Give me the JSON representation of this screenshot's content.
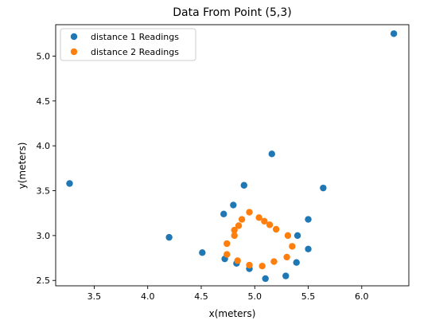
{
  "chart_data": {
    "type": "scatter",
    "title": "Data From Point (5,3)",
    "xlabel": "x(meters)",
    "ylabel": "y(meters)",
    "xlim": [
      3.14,
      6.44
    ],
    "ylim": [
      2.44,
      5.35
    ],
    "xticks": [
      {
        "value": 3.5,
        "label": "3.5"
      },
      {
        "value": 4.0,
        "label": "4.0"
      },
      {
        "value": 4.5,
        "label": "4.5"
      },
      {
        "value": 5.0,
        "label": "5.0"
      },
      {
        "value": 5.5,
        "label": "5.5"
      },
      {
        "value": 6.0,
        "label": "6.0"
      }
    ],
    "yticks": [
      {
        "value": 2.5,
        "label": "2.5"
      },
      {
        "value": 3.0,
        "label": "3.0"
      },
      {
        "value": 3.5,
        "label": "3.5"
      },
      {
        "value": 4.0,
        "label": "4.0"
      },
      {
        "value": 4.5,
        "label": "4.5"
      },
      {
        "value": 5.0,
        "label": "5.0"
      }
    ],
    "grid": false,
    "legend_position": "top-left",
    "series": [
      {
        "name": "distance 1 Readings",
        "color": "#1f77b4",
        "points": [
          {
            "x": 3.27,
            "y": 3.58
          },
          {
            "x": 4.2,
            "y": 2.98
          },
          {
            "x": 4.51,
            "y": 2.81
          },
          {
            "x": 4.72,
            "y": 2.74
          },
          {
            "x": 4.71,
            "y": 3.24
          },
          {
            "x": 4.8,
            "y": 3.34
          },
          {
            "x": 4.83,
            "y": 2.69
          },
          {
            "x": 4.9,
            "y": 3.56
          },
          {
            "x": 4.95,
            "y": 2.63
          },
          {
            "x": 5.1,
            "y": 2.52
          },
          {
            "x": 5.16,
            "y": 3.91
          },
          {
            "x": 5.29,
            "y": 2.55
          },
          {
            "x": 5.39,
            "y": 2.7
          },
          {
            "x": 5.4,
            "y": 3.0
          },
          {
            "x": 5.5,
            "y": 2.85
          },
          {
            "x": 5.5,
            "y": 3.18
          },
          {
            "x": 5.64,
            "y": 3.53
          },
          {
            "x": 6.3,
            "y": 5.25
          }
        ]
      },
      {
        "name": "distance 2 Readings",
        "color": "#ff7f0e",
        "points": [
          {
            "x": 4.74,
            "y": 2.79
          },
          {
            "x": 4.74,
            "y": 2.91
          },
          {
            "x": 4.81,
            "y": 3.0
          },
          {
            "x": 4.81,
            "y": 3.06
          },
          {
            "x": 4.85,
            "y": 3.11
          },
          {
            "x": 4.88,
            "y": 3.18
          },
          {
            "x": 4.95,
            "y": 3.26
          },
          {
            "x": 5.04,
            "y": 3.2
          },
          {
            "x": 5.09,
            "y": 3.16
          },
          {
            "x": 5.14,
            "y": 3.12
          },
          {
            "x": 5.2,
            "y": 3.07
          },
          {
            "x": 5.31,
            "y": 3.0
          },
          {
            "x": 5.35,
            "y": 2.88
          },
          {
            "x": 5.3,
            "y": 2.76
          },
          {
            "x": 5.18,
            "y": 2.71
          },
          {
            "x": 5.07,
            "y": 2.66
          },
          {
            "x": 4.95,
            "y": 2.67
          },
          {
            "x": 4.84,
            "y": 2.72
          }
        ]
      }
    ]
  }
}
